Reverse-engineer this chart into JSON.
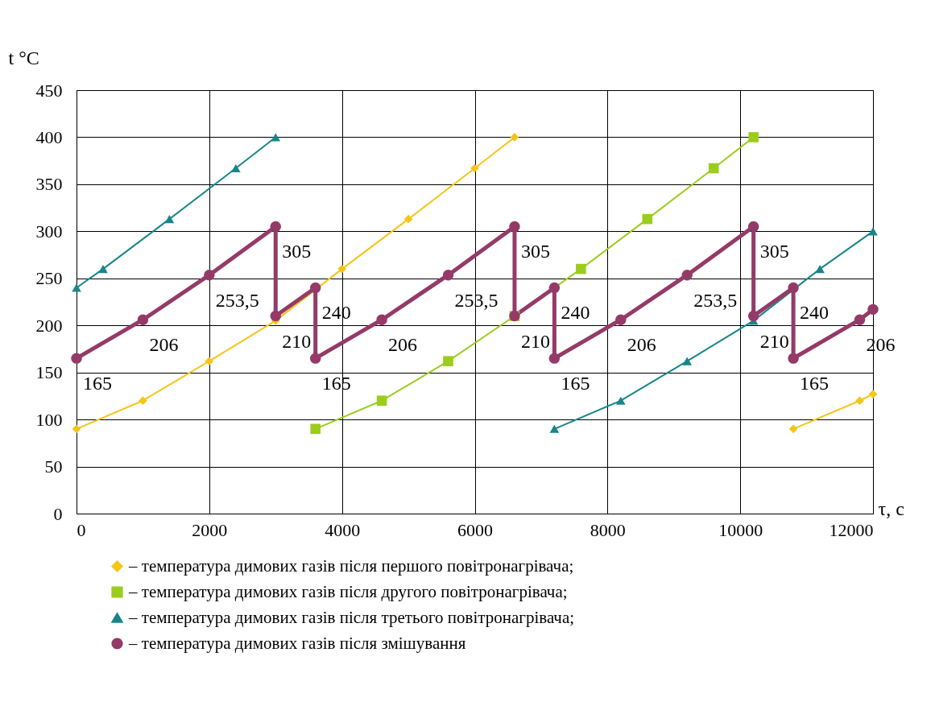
{
  "chart_data": {
    "type": "line",
    "ylabel": "t °C",
    "xlabel": "τ, с",
    "xlim": [
      0,
      12000
    ],
    "xticks": [
      0,
      2000,
      4000,
      6000,
      8000,
      10000,
      12000
    ],
    "ylim": [
      0,
      450
    ],
    "yticks": [
      0,
      50,
      100,
      150,
      200,
      250,
      300,
      350,
      400,
      450
    ],
    "grid": true,
    "legend": "bottom",
    "line_style": "solid",
    "series": [
      {
        "name": "– температура димових газів після першого повітронагрівача;",
        "color": "#f5c518",
        "marker": "diamond",
        "x": [
          0,
          1000,
          2000,
          3000,
          4000,
          5000,
          6000,
          6600,
          null,
          10800,
          11800,
          12000
        ],
        "values": [
          90,
          120,
          162,
          205,
          260,
          313,
          367,
          400,
          null,
          90,
          120,
          127
        ]
      },
      {
        "name": "– температура димових газів після другого повітронагрівача;",
        "color": "#9acd1c",
        "marker": "square",
        "x": [
          3600,
          4600,
          5600,
          6600,
          7600,
          8600,
          9600,
          10200
        ],
        "values": [
          90,
          120,
          162,
          210,
          260,
          313,
          367,
          400
        ]
      },
      {
        "name": "– температура димових газів після третього повітронагрівача;",
        "color": "#17868a",
        "marker": "triangle",
        "x": [
          0,
          400,
          1400,
          2400,
          3000,
          null,
          7200,
          8200,
          9200,
          10200,
          11200,
          12000
        ],
        "values": [
          240,
          260,
          313,
          367,
          400,
          null,
          90,
          120,
          162,
          205,
          260,
          300
        ]
      },
      {
        "name": "– температура димових газів після змішування",
        "color": "#953a68",
        "marker": "circle",
        "x": [
          0,
          1000,
          2000,
          3000,
          3000,
          3600,
          3600,
          4600,
          5600,
          6600,
          6600,
          7200,
          7200,
          8200,
          9200,
          10200,
          10200,
          10800,
          10800,
          11800,
          12000
        ],
        "values": [
          165,
          206,
          253.5,
          305,
          210,
          240,
          165,
          206,
          253.5,
          305,
          210,
          240,
          165,
          206,
          253.5,
          305,
          210,
          240,
          165,
          206,
          217
        ]
      }
    ],
    "annotations": [
      {
        "text": "165",
        "x": 0,
        "y": 165
      },
      {
        "text": "206",
        "x": 1000,
        "y": 206
      },
      {
        "text": "253,5",
        "x": 2000,
        "y": 253.5
      },
      {
        "text": "305",
        "x": 3000,
        "y": 305
      },
      {
        "text": "210",
        "x": 3000,
        "y": 210
      },
      {
        "text": "240",
        "x": 3600,
        "y": 240
      },
      {
        "text": "165",
        "x": 3600,
        "y": 165
      },
      {
        "text": "206",
        "x": 4600,
        "y": 206
      },
      {
        "text": "253,5",
        "x": 5600,
        "y": 253.5
      },
      {
        "text": "305",
        "x": 6600,
        "y": 305
      },
      {
        "text": "210",
        "x": 6600,
        "y": 210
      },
      {
        "text": "240",
        "x": 7200,
        "y": 240
      },
      {
        "text": "165",
        "x": 7200,
        "y": 165
      },
      {
        "text": "206",
        "x": 8200,
        "y": 206
      },
      {
        "text": "253,5",
        "x": 9200,
        "y": 253.5
      },
      {
        "text": "305",
        "x": 10200,
        "y": 305
      },
      {
        "text": "210",
        "x": 10200,
        "y": 210
      },
      {
        "text": "240",
        "x": 10800,
        "y": 240
      },
      {
        "text": "165",
        "x": 10800,
        "y": 165
      },
      {
        "text": "206",
        "x": 11800,
        "y": 206
      }
    ]
  }
}
